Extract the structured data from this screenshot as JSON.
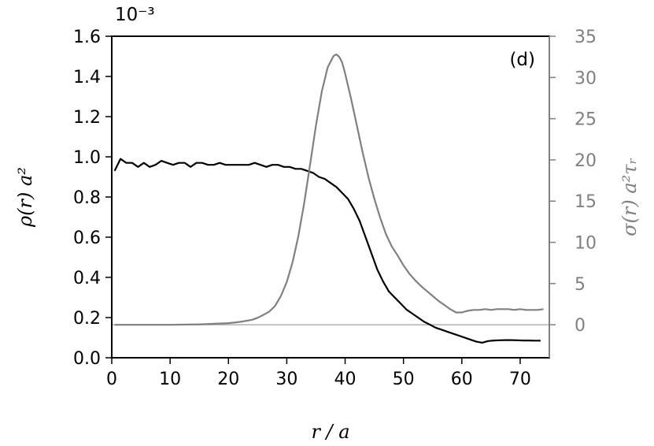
{
  "chart_data": {
    "type": "line",
    "panel_label": "(d)",
    "x_axis": {
      "label": "r / a",
      "range": [
        0,
        75
      ],
      "ticks": [
        0,
        10,
        20,
        30,
        40,
        50,
        60,
        70
      ]
    },
    "y_left": {
      "label": "ρ(r)   a²",
      "multiplier": "10⁻³",
      "range": [
        0.0,
        1.6
      ],
      "ticks": [
        "0.0",
        "0.2",
        "0.4",
        "0.6",
        "0.8",
        "1.0",
        "1.2",
        "1.4",
        "1.6"
      ],
      "color": "#000000"
    },
    "y_right": {
      "label": "σ(r)   a²τᵣ",
      "range": [
        -4,
        35
      ],
      "ticks": [
        0,
        5,
        10,
        15,
        20,
        25,
        30,
        35
      ],
      "color": "#808080"
    },
    "zero_line_color": "#b0b0b0",
    "series": [
      {
        "axis": "left",
        "color": "#000000",
        "x": [
          0.5,
          1.5,
          2.5,
          3.5,
          4.5,
          5.5,
          6.5,
          7.5,
          8.5,
          9.5,
          10.5,
          11.5,
          12.5,
          13.5,
          14.5,
          15.5,
          16.5,
          17.5,
          18.5,
          19.5,
          20.5,
          21.5,
          22.5,
          23.5,
          24.5,
          25.5,
          26.5,
          27.5,
          28.5,
          29.5,
          30.5,
          31.5,
          32.5,
          33.5,
          34.5,
          35.5,
          36.5,
          37.5,
          38.5,
          39.5,
          40.5,
          41.5,
          42.5,
          43.5,
          44.5,
          45.5,
          46.5,
          47.5,
          48.5,
          49.5,
          50.5,
          51.5,
          52.5,
          53.5,
          54.5,
          55.5,
          56.5,
          57.5,
          58.5,
          59.5,
          60.5,
          61.5,
          62.5,
          63.5,
          64.5,
          65.5,
          66.5,
          67.5,
          68.5,
          69.5,
          70.5,
          71.5,
          72.5,
          73.5
        ],
        "y": [
          0.93,
          0.99,
          0.97,
          0.97,
          0.95,
          0.97,
          0.95,
          0.96,
          0.98,
          0.97,
          0.96,
          0.97,
          0.97,
          0.95,
          0.97,
          0.97,
          0.96,
          0.96,
          0.97,
          0.96,
          0.96,
          0.96,
          0.96,
          0.96,
          0.97,
          0.96,
          0.95,
          0.96,
          0.96,
          0.95,
          0.95,
          0.94,
          0.94,
          0.93,
          0.92,
          0.9,
          0.89,
          0.87,
          0.85,
          0.82,
          0.79,
          0.74,
          0.68,
          0.6,
          0.52,
          0.44,
          0.38,
          0.33,
          0.3,
          0.27,
          0.24,
          0.22,
          0.2,
          0.18,
          0.165,
          0.15,
          0.14,
          0.13,
          0.12,
          0.11,
          0.1,
          0.09,
          0.08,
          0.075,
          0.083,
          0.086,
          0.087,
          0.088,
          0.088,
          0.087,
          0.086,
          0.086,
          0.085,
          0.085
        ]
      },
      {
        "axis": "right",
        "color": "#808080",
        "x": [
          0.5,
          5,
          10,
          15,
          20,
          22,
          24,
          25,
          26,
          27,
          28,
          29,
          30,
          31,
          32,
          33,
          34,
          35,
          36,
          37,
          38,
          38.5,
          39,
          39.5,
          40,
          41,
          42,
          43,
          44,
          45,
          46,
          47,
          48,
          49,
          50,
          51,
          52,
          53,
          54,
          55,
          56,
          57,
          58,
          59,
          60,
          61,
          62,
          63,
          64,
          65,
          66,
          67,
          68,
          69,
          70,
          71,
          72,
          73,
          74
        ],
        "y": [
          0,
          0,
          0,
          0.05,
          0.2,
          0.35,
          0.6,
          0.85,
          1.2,
          1.6,
          2.3,
          3.5,
          5.2,
          7.6,
          10.8,
          14.8,
          19.5,
          24.2,
          28.3,
          31.2,
          32.6,
          32.8,
          32.5,
          31.8,
          30.5,
          27.5,
          24.2,
          20.9,
          17.9,
          15.3,
          13,
          11,
          9.5,
          8.4,
          7.2,
          6.2,
          5.4,
          4.7,
          4.1,
          3.5,
          2.9,
          2.4,
          1.9,
          1.5,
          1.5,
          1.7,
          1.8,
          1.8,
          1.9,
          1.8,
          1.9,
          1.9,
          1.9,
          1.8,
          1.9,
          1.8,
          1.8,
          1.8,
          1.9
        ]
      }
    ]
  }
}
